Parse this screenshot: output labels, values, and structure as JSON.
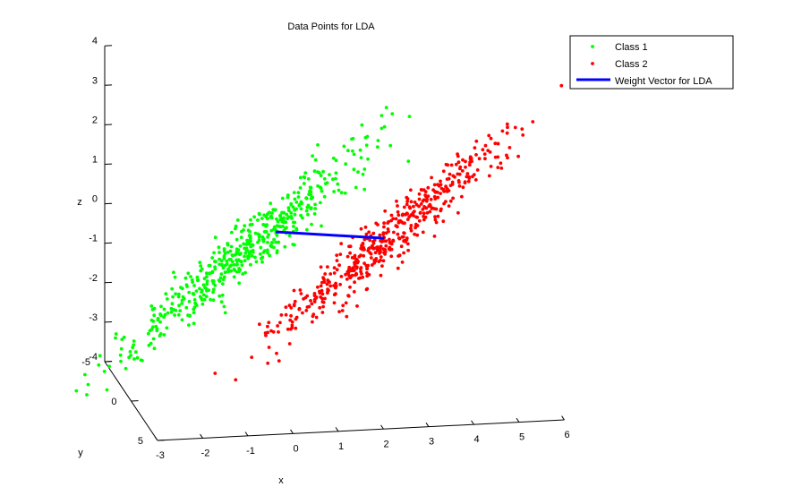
{
  "chart_data": {
    "type": "scatter",
    "title": "Data Points for LDA",
    "xlabel": "x",
    "ylabel": "y",
    "zlabel": "z",
    "xlim": [
      -3,
      6
    ],
    "ylim": [
      -5,
      5
    ],
    "zlim": [
      -4,
      4
    ],
    "x_ticks": [
      "-3",
      "-2",
      "-1",
      "0",
      "1",
      "2",
      "3",
      "4",
      "5",
      "6"
    ],
    "y_ticks": [
      "-5",
      "0",
      "5"
    ],
    "z_ticks": [
      "-4",
      "-3",
      "-2",
      "-1",
      "0",
      "1",
      "2",
      "3",
      "4"
    ],
    "grid": false,
    "legend_position": "top-right",
    "series": [
      {
        "name": "Class 1",
        "color": "#00ff00",
        "marker": "dot",
        "center": [
          -0.4,
          0,
          -0.3
        ],
        "spread_along": [
          1.3,
          0.45,
          1.35
        ],
        "spread_across": 0.28,
        "count": 500
      },
      {
        "name": "Class 2",
        "color": "#ff0000",
        "marker": "dot",
        "center": [
          2.8,
          0,
          -0.1
        ],
        "spread_along": [
          1.25,
          0.4,
          1.3
        ],
        "spread_across": 0.26,
        "count": 500
      },
      {
        "name": "Weight Vector for LDA",
        "color": "#0000ff",
        "type": "line",
        "points": [
          [
            0.2,
            0,
            0.1
          ],
          [
            2.6,
            0,
            -0.2
          ]
        ]
      }
    ]
  }
}
